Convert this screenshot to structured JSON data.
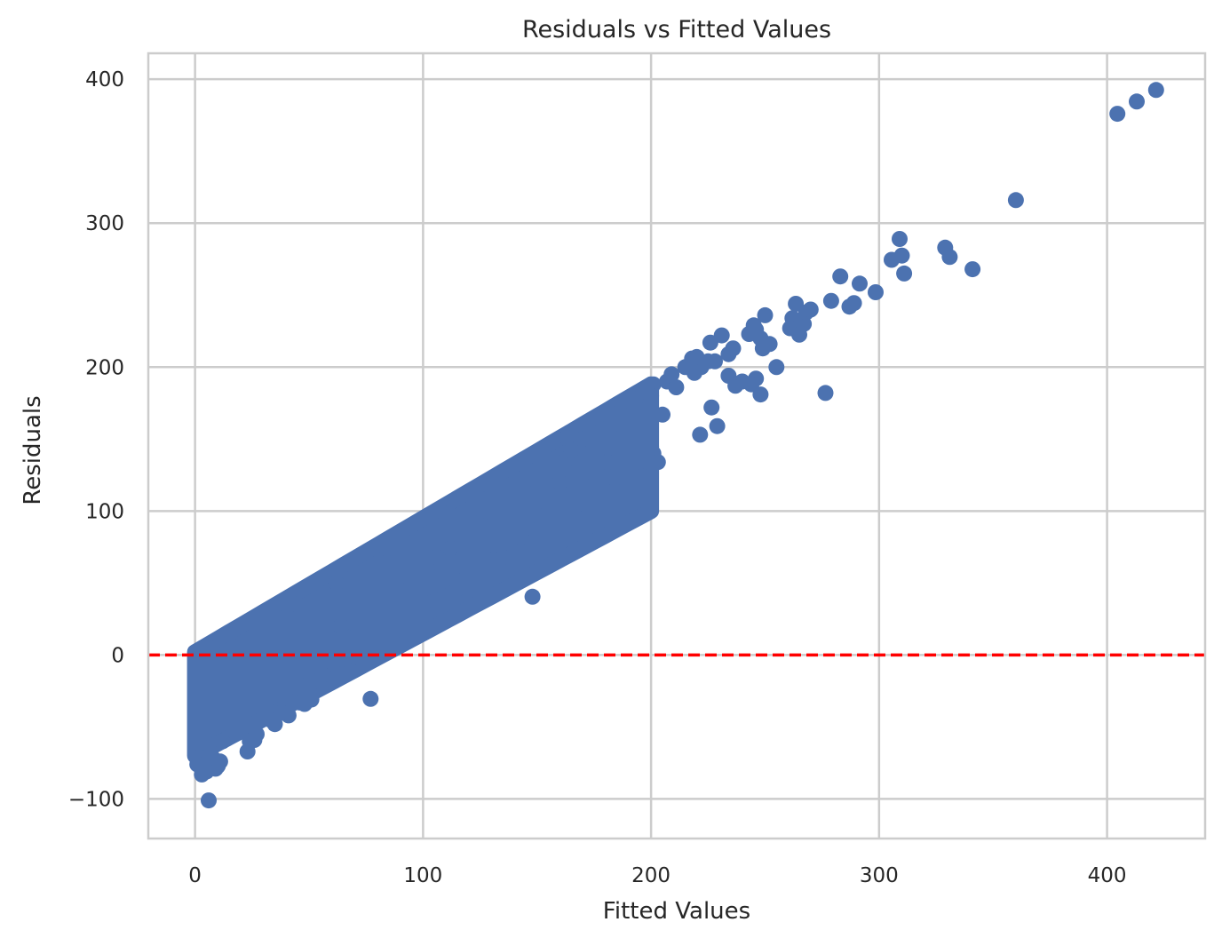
{
  "chart_data": {
    "type": "scatter",
    "title": "Residuals vs Fitted Values",
    "xlabel": "Fitted Values",
    "ylabel": "Residuals",
    "xlim": [
      -20.5,
      443
    ],
    "ylim": [
      -127.5,
      418
    ],
    "xticks": [
      0,
      100,
      200,
      300,
      400
    ],
    "yticks": [
      -100,
      0,
      100,
      200,
      300,
      400
    ],
    "xtick_labels": [
      "0",
      "100",
      "200",
      "300",
      "400"
    ],
    "ytick_labels": [
      "−100",
      "0",
      "100",
      "200",
      "300",
      "400"
    ],
    "grid": true,
    "marker_color": "#4C72B0",
    "reference_line": {
      "y": 0,
      "style": "dashed",
      "color": "#FF0000"
    },
    "band": {
      "x_min": 0,
      "x_max": 200,
      "lower_offset": -70,
      "upper_offset": 2,
      "lower_floor": -85,
      "upper_clip": 0.93
    },
    "points": [
      [
        421.5,
        392.5
      ],
      [
        413,
        384.5
      ],
      [
        404.5,
        376
      ],
      [
        360,
        316
      ],
      [
        309,
        289
      ],
      [
        310,
        277.5
      ],
      [
        305.5,
        274.5
      ],
      [
        311,
        265
      ],
      [
        329,
        283
      ],
      [
        331,
        276.5
      ],
      [
        341,
        268
      ],
      [
        283,
        263
      ],
      [
        291.5,
        258
      ],
      [
        298.5,
        252
      ],
      [
        279,
        246
      ],
      [
        287,
        242
      ],
      [
        289,
        244.5
      ],
      [
        263.5,
        244
      ],
      [
        262,
        234
      ],
      [
        261,
        227
      ],
      [
        265,
        222.5
      ],
      [
        267,
        230
      ],
      [
        268,
        238
      ],
      [
        270,
        240
      ],
      [
        276.5,
        182
      ],
      [
        255,
        200
      ],
      [
        246,
        192
      ],
      [
        248,
        181
      ],
      [
        244,
        188
      ],
      [
        250,
        236
      ],
      [
        249,
        213
      ],
      [
        252,
        216
      ],
      [
        246,
        226
      ],
      [
        245,
        229
      ],
      [
        243,
        223
      ],
      [
        248,
        220
      ],
      [
        231,
        222
      ],
      [
        226,
        217
      ],
      [
        234,
        209
      ],
      [
        236,
        213
      ],
      [
        240,
        190
      ],
      [
        237,
        187
      ],
      [
        234,
        194
      ],
      [
        221.5,
        153
      ],
      [
        229,
        159
      ],
      [
        226.5,
        172
      ],
      [
        222,
        200
      ],
      [
        225,
        204
      ],
      [
        220,
        207
      ],
      [
        228,
        204
      ],
      [
        218,
        206
      ],
      [
        215,
        200
      ],
      [
        219,
        196
      ],
      [
        207,
        190
      ],
      [
        209,
        195
      ],
      [
        211,
        186
      ],
      [
        201,
        188
      ],
      [
        200,
        180
      ],
      [
        205,
        167
      ],
      [
        201,
        140
      ],
      [
        203,
        134
      ],
      [
        200,
        145
      ],
      [
        196,
        124
      ],
      [
        191,
        137
      ],
      [
        184,
        114
      ],
      [
        187,
        160
      ],
      [
        185,
        168
      ],
      [
        193,
        181
      ],
      [
        195,
        170
      ],
      [
        190,
        158
      ],
      [
        174,
        103
      ],
      [
        168,
        105
      ],
      [
        171,
        117
      ],
      [
        179,
        126
      ],
      [
        181,
        134
      ],
      [
        176,
        140
      ],
      [
        160,
        120
      ],
      [
        163,
        136
      ],
      [
        158,
        128
      ],
      [
        165,
        142
      ],
      [
        170,
        150
      ],
      [
        148,
        40.5
      ],
      [
        145.5,
        78
      ],
      [
        143,
        82
      ],
      [
        135,
        68
      ],
      [
        140,
        88
      ],
      [
        139,
        107
      ],
      [
        150,
        97
      ],
      [
        146,
        112
      ],
      [
        125,
        92
      ],
      [
        122,
        80
      ],
      [
        131,
        76
      ],
      [
        117,
        72
      ],
      [
        120,
        63
      ],
      [
        128,
        100
      ],
      [
        133,
        104
      ],
      [
        118,
        52
      ],
      [
        115,
        46
      ],
      [
        109,
        60
      ],
      [
        106,
        68
      ],
      [
        112,
        74
      ],
      [
        104,
        54
      ],
      [
        108,
        41.5
      ],
      [
        105,
        38
      ],
      [
        100,
        30
      ],
      [
        96,
        40
      ],
      [
        102,
        47
      ],
      [
        93,
        13
      ],
      [
        94,
        20
      ],
      [
        92,
        32
      ],
      [
        90,
        45
      ],
      [
        88,
        57
      ],
      [
        86,
        28
      ],
      [
        84,
        6
      ],
      [
        81,
        8
      ],
      [
        78,
        10
      ],
      [
        76,
        15
      ],
      [
        74,
        22
      ],
      [
        77,
        -30.5
      ],
      [
        72,
        -2
      ],
      [
        70,
        4
      ],
      [
        67,
        12
      ],
      [
        64,
        20
      ],
      [
        61,
        -12
      ],
      [
        59,
        -4
      ],
      [
        58,
        -16
      ],
      [
        56,
        -14
      ],
      [
        54,
        -18
      ],
      [
        50,
        -26
      ],
      [
        48,
        -34
      ],
      [
        51,
        -31
      ],
      [
        49,
        -21
      ],
      [
        46,
        -33
      ],
      [
        42,
        -34
      ],
      [
        41,
        -42
      ],
      [
        38,
        -40
      ],
      [
        35,
        -48
      ],
      [
        33,
        -45
      ],
      [
        31,
        -38
      ],
      [
        27,
        -55
      ],
      [
        26,
        -59
      ],
      [
        23,
        -67
      ],
      [
        24,
        -60
      ],
      [
        22,
        -49
      ],
      [
        18,
        -47
      ],
      [
        17,
        -52
      ],
      [
        14,
        -58
      ],
      [
        12,
        -60
      ],
      [
        11,
        -74
      ],
      [
        10,
        -77
      ],
      [
        9,
        -79
      ],
      [
        8,
        -72
      ],
      [
        6,
        -101
      ],
      [
        5,
        -81
      ],
      [
        4,
        -79
      ],
      [
        3,
        -83
      ],
      [
        2,
        -71
      ],
      [
        1,
        -76
      ],
      [
        41,
        40
      ],
      [
        32,
        30
      ],
      [
        45,
        35
      ],
      [
        15,
        14
      ],
      [
        6,
        5
      ],
      [
        29,
        22
      ],
      [
        62,
        50
      ],
      [
        58,
        38
      ],
      [
        84,
        74
      ],
      [
        91,
        86
      ],
      [
        103,
        95
      ],
      [
        113,
        107
      ],
      [
        123,
        114
      ],
      [
        133,
        124
      ],
      [
        143,
        133
      ],
      [
        153,
        142
      ],
      [
        163,
        151
      ],
      [
        172,
        160
      ],
      [
        182,
        168
      ],
      [
        192,
        178
      ],
      [
        197,
        185
      ]
    ]
  }
}
